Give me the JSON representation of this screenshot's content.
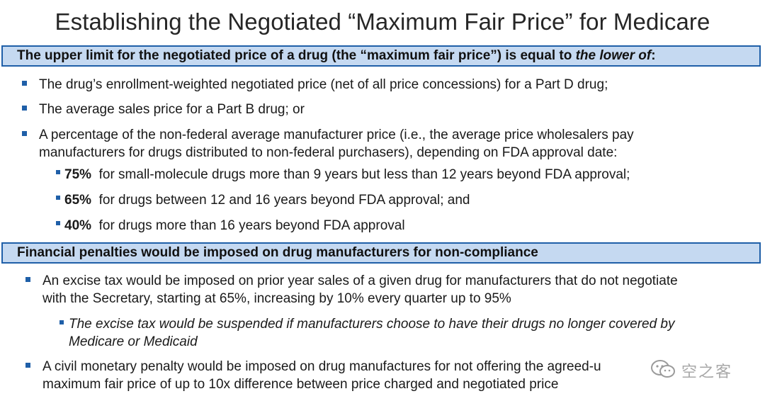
{
  "title": "Establishing the Negotiated “Maximum Fair Price” for Medicare",
  "section1": {
    "header_plain": "The upper limit for the negotiated price of a drug (the “maximum fair price”) is equal to ",
    "header_italic": "the lower of",
    "header_end": ":",
    "bullets": [
      "The drug’s enrollment-weighted negotiated price (net of all price concessions) for a Part D drug;",
      "The average sales price for a Part B drug; or",
      "A percentage of the non-federal average manufacturer price (i.e., the average price wholesalers pay",
      "manufacturers for drugs distributed to non-federal purchasers), depending on FDA approval date:"
    ],
    "sub_bullets": [
      {
        "pct": "75%",
        "text": "for small-molecule drugs more than 9 years but less than 12 years beyond FDA approval;"
      },
      {
        "pct": "65%",
        "text": "for drugs between 12 and 16 years beyond FDA approval; and"
      },
      {
        "pct": "40%",
        "text": "for drugs more than 16 years beyond FDA approval"
      }
    ]
  },
  "section2": {
    "header": "Financial penalties would be imposed on drug manufacturers for non-compliance",
    "bullet1_line1": "An excise tax would be imposed on prior year sales of a given drug for manufacturers that do not negotiate",
    "bullet1_line2": "with the Secretary, starting at 65%, increasing by 10% every quarter up to 95%",
    "sub_line1": "The excise tax would be suspended if manufacturers choose to have their drugs no longer covered by",
    "sub_line2": "Medicare or Medicaid",
    "bullet2_line1": "A civil monetary penalty would be imposed on drug manufactures for not offering the agreed-u",
    "bullet2_line2": "maximum fair price of up to 10x difference between price charged and negotiated price"
  },
  "watermark": {
    "text": "空之客",
    "icon": "wechat-icon"
  },
  "colors": {
    "band_fill": "#c5d9f1",
    "band_border": "#1f5fa8",
    "bullet": "#1f5fa8"
  }
}
